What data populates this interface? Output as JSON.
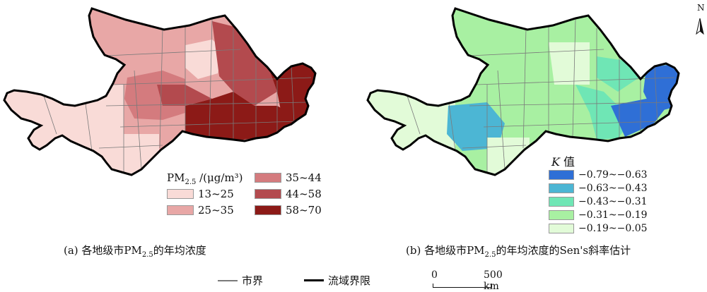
{
  "panel_a": {
    "legend_title_main": "PM",
    "legend_title_sub": "2.5",
    "legend_title_unit": " /(μg/m³)",
    "classes": [
      {
        "label": "13~25",
        "color": "#f9dbd7"
      },
      {
        "label": "25~35",
        "color": "#e8a7a6"
      },
      {
        "label": "35~44",
        "color": "#d47b7e"
      },
      {
        "label": "44~58",
        "color": "#b34a4e"
      },
      {
        "label": "58~70",
        "color": "#8c1a17"
      }
    ],
    "caption_prefix": "(a) 各地级市PM",
    "caption_sub": "2.5",
    "caption_suffix": "的年均浓度"
  },
  "panel_b": {
    "legend_title_k": "K",
    "legend_title_rest": " 值",
    "classes": [
      {
        "label": "−0.79~−0.63",
        "color": "#2f6fd6"
      },
      {
        "label": "−0.63~−0.43",
        "color": "#4cb6d4"
      },
      {
        "label": "−0.43~−0.31",
        "color": "#6fe6b5"
      },
      {
        "label": "−0.31~−0.19",
        "color": "#a8f0a2"
      },
      {
        "label": "−0.19~−0.05",
        "color": "#e2fbd8"
      }
    ],
    "caption_prefix": "(b) 各地级市PM",
    "caption_sub": "2.5",
    "caption_suffix": "的年均浓度的Sen's斜率估计"
  },
  "legend": {
    "city_boundary": "市界",
    "basin_boundary": "流域界限"
  },
  "scale_bar": {
    "start": "0",
    "end": "500 km"
  },
  "north_arrow": {
    "label": "N"
  }
}
